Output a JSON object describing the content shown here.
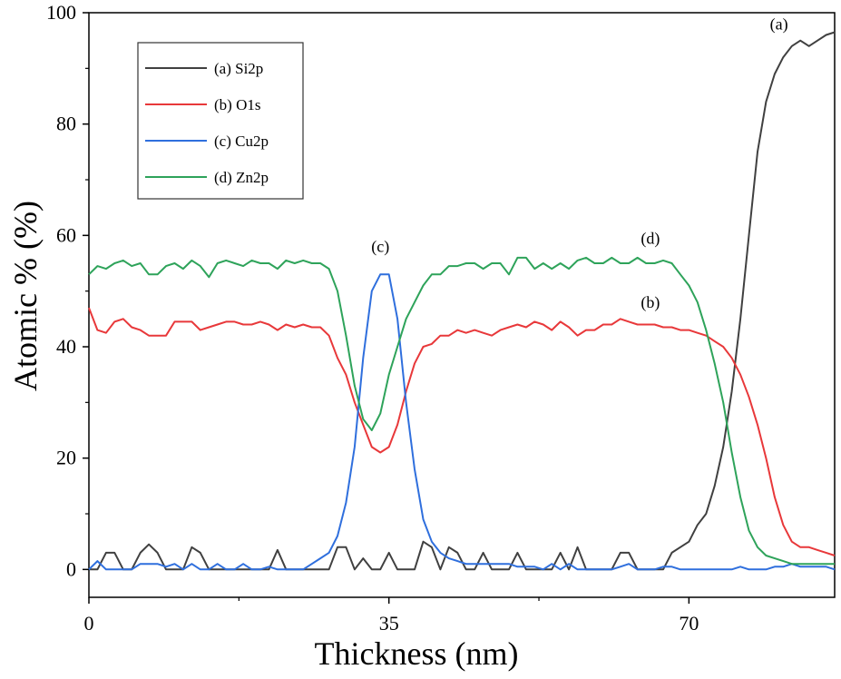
{
  "chart_data": {
    "type": "line",
    "xlabel": "Thickness (nm)",
    "ylabel": "Atomic % (%)",
    "xlim": [
      0,
      87
    ],
    "ylim": [
      -5,
      100
    ],
    "xticks": [
      0,
      35,
      70
    ],
    "yticks": [
      0,
      20,
      40,
      60,
      80,
      100
    ],
    "grid": false,
    "legend_position": "top-left",
    "series": [
      {
        "name": "(a) Si2p",
        "annotation": "(a)",
        "color": "#404040",
        "x": [
          0,
          1,
          2,
          3,
          4,
          5,
          6,
          7,
          8,
          9,
          10,
          11,
          12,
          13,
          14,
          15,
          16,
          17,
          18,
          19,
          20,
          21,
          22,
          23,
          24,
          25,
          26,
          27,
          28,
          29,
          30,
          31,
          32,
          33,
          34,
          35,
          36,
          37,
          38,
          39,
          40,
          41,
          42,
          43,
          44,
          45,
          46,
          47,
          48,
          49,
          50,
          51,
          52,
          53,
          54,
          55,
          56,
          57,
          58,
          59,
          60,
          61,
          62,
          63,
          64,
          65,
          66,
          67,
          68,
          69,
          70,
          71,
          72,
          73,
          74,
          75,
          76,
          77,
          78,
          79,
          80,
          81,
          82,
          83,
          84,
          85,
          86,
          87
        ],
        "values": [
          0,
          0,
          3,
          3,
          0,
          0,
          3,
          4.5,
          3,
          0,
          0,
          0,
          4,
          3,
          0,
          0,
          0,
          0,
          0,
          0,
          0,
          0,
          3.5,
          0,
          0,
          0,
          0,
          0,
          0,
          4,
          4,
          0,
          2,
          0,
          0,
          3,
          0,
          0,
          0,
          5,
          4,
          0,
          4,
          3,
          0,
          0,
          3,
          0,
          0,
          0,
          3,
          0,
          0,
          0,
          0,
          3,
          0,
          4,
          0,
          0,
          0,
          0,
          3,
          3,
          0,
          0,
          0,
          0,
          3,
          4,
          5,
          8,
          10,
          15,
          22,
          32,
          45,
          60,
          75,
          84,
          89,
          92,
          94,
          95,
          94,
          95,
          96,
          96.5
        ]
      },
      {
        "name": "(b) O1s",
        "annotation": "(b)",
        "color": "#e8383a",
        "x": [
          0,
          1,
          2,
          3,
          4,
          5,
          6,
          7,
          8,
          9,
          10,
          11,
          12,
          13,
          14,
          15,
          16,
          17,
          18,
          19,
          20,
          21,
          22,
          23,
          24,
          25,
          26,
          27,
          28,
          29,
          30,
          31,
          32,
          33,
          34,
          35,
          36,
          37,
          38,
          39,
          40,
          41,
          42,
          43,
          44,
          45,
          46,
          47,
          48,
          49,
          50,
          51,
          52,
          53,
          54,
          55,
          56,
          57,
          58,
          59,
          60,
          61,
          62,
          63,
          64,
          65,
          66,
          67,
          68,
          69,
          70,
          71,
          72,
          73,
          74,
          75,
          76,
          77,
          78,
          79,
          80,
          81,
          82,
          83,
          84,
          85,
          86,
          87
        ],
        "values": [
          47,
          43,
          42.5,
          44.5,
          45,
          43.5,
          43,
          42,
          42,
          42,
          44.5,
          44.5,
          44.5,
          43,
          43.5,
          44,
          44.5,
          44.5,
          44,
          44,
          44.5,
          44,
          43,
          44,
          43.5,
          44,
          43.5,
          43.5,
          42,
          38,
          35,
          30,
          26,
          22,
          21,
          22,
          26,
          32,
          37,
          40,
          40.5,
          42,
          42,
          43,
          42.5,
          43,
          42.5,
          42,
          43,
          43.5,
          44,
          43.5,
          44.5,
          44,
          43,
          44.5,
          43.5,
          42,
          43,
          43,
          44,
          44,
          45,
          44.5,
          44,
          44,
          44,
          43.5,
          43.5,
          43,
          43,
          42.5,
          42,
          41,
          40,
          38,
          35,
          31,
          26,
          20,
          13,
          8,
          5,
          4,
          4,
          3.5,
          3,
          2.5
        ]
      },
      {
        "name": "(c) Cu2p",
        "annotation": "(c)",
        "color": "#2f6fdd",
        "x": [
          0,
          1,
          2,
          3,
          4,
          5,
          6,
          7,
          8,
          9,
          10,
          11,
          12,
          13,
          14,
          15,
          16,
          17,
          18,
          19,
          20,
          21,
          22,
          23,
          24,
          25,
          26,
          27,
          28,
          29,
          30,
          31,
          32,
          33,
          34,
          35,
          36,
          37,
          38,
          39,
          40,
          41,
          42,
          43,
          44,
          45,
          46,
          47,
          48,
          49,
          50,
          51,
          52,
          53,
          54,
          55,
          56,
          57,
          58,
          59,
          60,
          61,
          62,
          63,
          64,
          65,
          66,
          67,
          68,
          69,
          70,
          71,
          72,
          73,
          74,
          75,
          76,
          77,
          78,
          79,
          80,
          81,
          82,
          83,
          84,
          85,
          86,
          87
        ],
        "values": [
          0,
          1.5,
          0,
          0,
          0,
          0,
          1,
          1,
          1,
          0.5,
          1,
          0,
          1,
          0,
          0,
          1,
          0,
          0,
          1,
          0,
          0,
          0.5,
          0,
          0,
          0,
          0,
          1,
          2,
          3,
          6,
          12,
          22,
          38,
          50,
          53,
          53,
          45,
          30,
          18,
          9,
          5,
          3,
          2,
          1.5,
          1,
          1,
          1,
          1,
          1,
          1,
          0.5,
          0.5,
          0.5,
          0,
          1,
          0,
          1,
          0,
          0,
          0,
          0,
          0,
          0.5,
          1,
          0,
          0,
          0,
          0.5,
          0.5,
          0,
          0,
          0,
          0,
          0,
          0,
          0,
          0.5,
          0,
          0,
          0,
          0.5,
          0.5,
          1,
          0.5,
          0.5,
          0.5,
          0.5,
          0
        ]
      },
      {
        "name": "(d) Zn2p",
        "annotation": "(d)",
        "color": "#2ea35a",
        "x": [
          0,
          1,
          2,
          3,
          4,
          5,
          6,
          7,
          8,
          9,
          10,
          11,
          12,
          13,
          14,
          15,
          16,
          17,
          18,
          19,
          20,
          21,
          22,
          23,
          24,
          25,
          26,
          27,
          28,
          29,
          30,
          31,
          32,
          33,
          34,
          35,
          36,
          37,
          38,
          39,
          40,
          41,
          42,
          43,
          44,
          45,
          46,
          47,
          48,
          49,
          50,
          51,
          52,
          53,
          54,
          55,
          56,
          57,
          58,
          59,
          60,
          61,
          62,
          63,
          64,
          65,
          66,
          67,
          68,
          69,
          70,
          71,
          72,
          73,
          74,
          75,
          76,
          77,
          78,
          79,
          80,
          81,
          82,
          83,
          84,
          85,
          86,
          87
        ],
        "values": [
          53,
          54.5,
          54,
          55,
          55.5,
          54.5,
          55,
          53,
          53,
          54.5,
          55,
          54,
          55.5,
          54.5,
          52.5,
          55,
          55.5,
          55,
          54.5,
          55.5,
          55,
          55,
          54,
          55.5,
          55,
          55.5,
          55,
          55,
          54,
          50,
          42,
          33,
          27,
          25,
          28,
          35,
          40,
          45,
          48,
          51,
          53,
          53,
          54.5,
          54.5,
          55,
          55,
          54,
          55,
          55,
          53,
          56,
          56,
          54,
          55,
          54,
          55,
          54,
          55.5,
          56,
          55,
          55,
          56,
          55,
          55,
          56,
          55,
          55,
          55.5,
          55,
          53,
          51,
          48,
          43,
          37,
          30,
          21,
          13,
          7,
          4,
          2.5,
          2,
          1.5,
          1,
          1,
          1,
          1,
          1,
          1
        ]
      }
    ],
    "annotations": [
      {
        "text": "(a)",
        "x": 80.5,
        "y": 97
      },
      {
        "text": "(b)",
        "x": 65.5,
        "y": 47
      },
      {
        "text": "(c)",
        "x": 34.0,
        "y": 57
      },
      {
        "text": "(d)",
        "x": 65.5,
        "y": 58.5
      }
    ]
  }
}
